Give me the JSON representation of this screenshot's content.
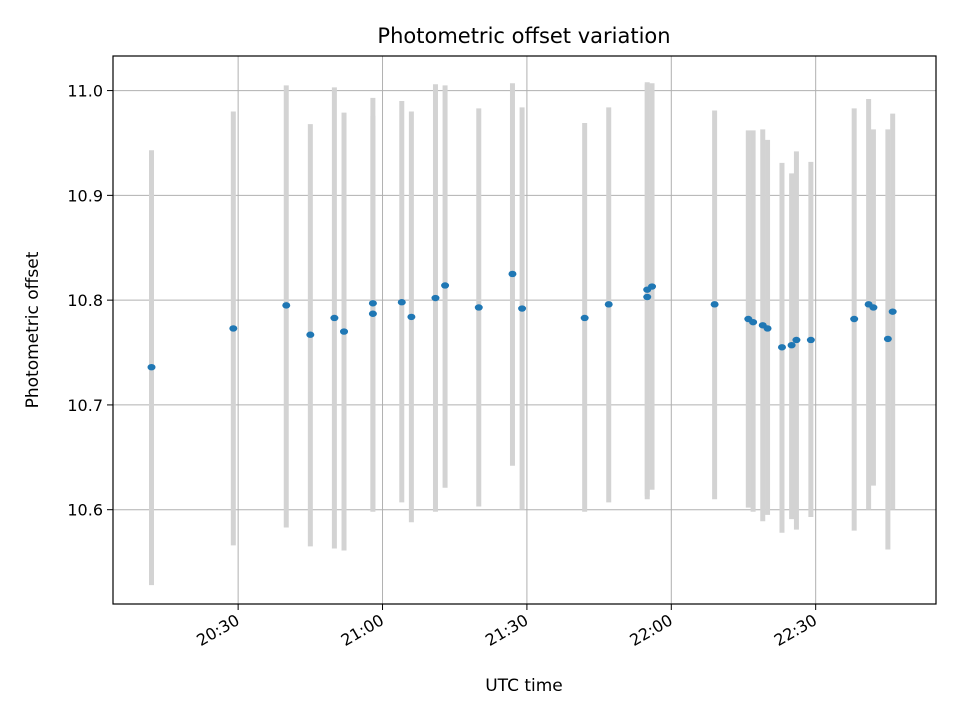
{
  "chart_data": {
    "type": "scatter",
    "title": "Photometric offset variation",
    "xlabel": "UTC time",
    "ylabel": "Photometric offset",
    "x_unit": "UTC time HH:MM",
    "xlim": [
      "20:04",
      "22:55"
    ],
    "ylim": [
      10.51,
      11.033
    ],
    "x_ticks": [
      "20:30",
      "21:00",
      "21:30",
      "22:00",
      "22:30"
    ],
    "y_ticks": [
      10.6,
      10.7,
      10.8,
      10.9,
      11.0
    ],
    "y_tick_labels": [
      "10.6",
      "10.7",
      "10.8",
      "10.9",
      "11.0"
    ],
    "grid": true,
    "colors": {
      "point": "#1f77b4",
      "errorbar": "#d3d3d3",
      "grid": "#b0b0b0",
      "axis": "#000000"
    },
    "points": [
      {
        "x": "20:12",
        "y": 10.736,
        "ylow": 10.528,
        "yhigh": 10.943
      },
      {
        "x": "20:29",
        "y": 10.773,
        "ylow": 10.566,
        "yhigh": 10.98
      },
      {
        "x": "20:40",
        "y": 10.795,
        "ylow": 10.583,
        "yhigh": 11.005
      },
      {
        "x": "20:45",
        "y": 10.767,
        "ylow": 10.565,
        "yhigh": 10.968
      },
      {
        "x": "20:50",
        "y": 10.783,
        "ylow": 10.563,
        "yhigh": 11.003
      },
      {
        "x": "20:52",
        "y": 10.77,
        "ylow": 10.561,
        "yhigh": 10.979
      },
      {
        "x": "20:58",
        "y": 10.787,
        "ylow": 10.598,
        "yhigh": 10.976
      },
      {
        "x": "20:58",
        "y": 10.797,
        "ylow": 10.6,
        "yhigh": 10.993
      },
      {
        "x": "21:04",
        "y": 10.798,
        "ylow": 10.607,
        "yhigh": 10.99
      },
      {
        "x": "21:06",
        "y": 10.784,
        "ylow": 10.588,
        "yhigh": 10.98
      },
      {
        "x": "21:11",
        "y": 10.802,
        "ylow": 10.598,
        "yhigh": 11.006
      },
      {
        "x": "21:13",
        "y": 10.814,
        "ylow": 10.621,
        "yhigh": 11.005
      },
      {
        "x": "21:20",
        "y": 10.793,
        "ylow": 10.603,
        "yhigh": 10.983
      },
      {
        "x": "21:27",
        "y": 10.825,
        "ylow": 10.642,
        "yhigh": 11.007
      },
      {
        "x": "21:29",
        "y": 10.792,
        "ylow": 10.6,
        "yhigh": 10.984
      },
      {
        "x": "21:42",
        "y": 10.783,
        "ylow": 10.598,
        "yhigh": 10.969
      },
      {
        "x": "21:47",
        "y": 10.796,
        "ylow": 10.607,
        "yhigh": 10.984
      },
      {
        "x": "21:55",
        "y": 10.803,
        "ylow": 10.61,
        "yhigh": 11.008
      },
      {
        "x": "21:55",
        "y": 10.81,
        "ylow": 10.613,
        "yhigh": 11.006
      },
      {
        "x": "21:56",
        "y": 10.813,
        "ylow": 10.619,
        "yhigh": 11.007
      },
      {
        "x": "22:09",
        "y": 10.796,
        "ylow": 10.61,
        "yhigh": 10.981
      },
      {
        "x": "22:16",
        "y": 10.782,
        "ylow": 10.602,
        "yhigh": 10.962
      },
      {
        "x": "22:17",
        "y": 10.779,
        "ylow": 10.598,
        "yhigh": 10.962
      },
      {
        "x": "22:19",
        "y": 10.776,
        "ylow": 10.589,
        "yhigh": 10.963
      },
      {
        "x": "22:20",
        "y": 10.773,
        "ylow": 10.595,
        "yhigh": 10.953
      },
      {
        "x": "22:23",
        "y": 10.755,
        "ylow": 10.578,
        "yhigh": 10.931
      },
      {
        "x": "22:25",
        "y": 10.757,
        "ylow": 10.591,
        "yhigh": 10.921
      },
      {
        "x": "22:26",
        "y": 10.762,
        "ylow": 10.581,
        "yhigh": 10.942
      },
      {
        "x": "22:29",
        "y": 10.762,
        "ylow": 10.593,
        "yhigh": 10.932
      },
      {
        "x": "22:38",
        "y": 10.782,
        "ylow": 10.58,
        "yhigh": 10.983
      },
      {
        "x": "22:41",
        "y": 10.796,
        "ylow": 10.6,
        "yhigh": 10.992
      },
      {
        "x": "22:42",
        "y": 10.793,
        "ylow": 10.623,
        "yhigh": 10.963
      },
      {
        "x": "22:45",
        "y": 10.763,
        "ylow": 10.562,
        "yhigh": 10.963
      },
      {
        "x": "22:46",
        "y": 10.789,
        "ylow": 10.6,
        "yhigh": 10.978
      }
    ]
  }
}
